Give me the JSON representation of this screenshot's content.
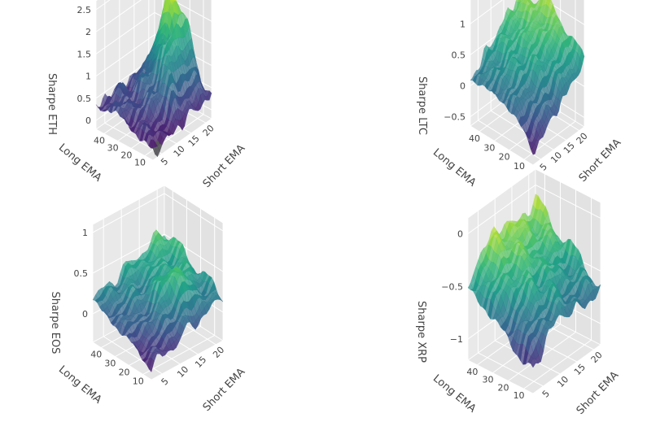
{
  "chart_data": [
    {
      "type": "surface",
      "zlabel": "Sharpe ETH",
      "xlabel": "Short EMA",
      "ylabel": "Long EMA",
      "z_ticks": [
        "0",
        "0.5",
        "1",
        "1.5",
        "2",
        "2.5"
      ],
      "z_range": [
        -0.2,
        2.7
      ],
      "x_ticks": [
        "5",
        "10",
        "15",
        "20"
      ],
      "x_range": [
        2,
        22
      ],
      "y_ticks": [
        "10",
        "20",
        "30",
        "40"
      ],
      "y_range": [
        4,
        46
      ],
      "surface_range": [
        -0.1,
        2.6
      ],
      "colorscale": "viridis",
      "sample_values": [
        {
          "short_ema": 20,
          "long_ema": 25,
          "sharpe": 2.55
        },
        {
          "short_ema": 15,
          "long_ema": 20,
          "sharpe": 1.9
        },
        {
          "short_ema": 10,
          "long_ema": 20,
          "sharpe": 1.6
        },
        {
          "short_ema": 5,
          "long_ema": 10,
          "sharpe": 0.1
        },
        {
          "short_ema": 20,
          "long_ema": 45,
          "sharpe": 0.4
        }
      ]
    },
    {
      "type": "surface",
      "zlabel": "Sharpe LTC",
      "xlabel": "Short EMA",
      "ylabel": "Long EMA",
      "z_ticks": [
        "−0.5",
        "0",
        "0.5",
        "1"
      ],
      "z_range": [
        -0.65,
        1.45
      ],
      "x_ticks": [
        "5",
        "10",
        "15",
        "20"
      ],
      "x_range": [
        2,
        22
      ],
      "y_ticks": [
        "10",
        "20",
        "30",
        "40"
      ],
      "y_range": [
        4,
        46
      ],
      "surface_range": [
        -0.6,
        1.3
      ],
      "colorscale": "viridis",
      "sample_values": [
        {
          "short_ema": 20,
          "long_ema": 30,
          "sharpe": 1.3
        },
        {
          "short_ema": 15,
          "long_ema": 25,
          "sharpe": 0.9
        },
        {
          "short_ema": 5,
          "long_ema": 10,
          "sharpe": -0.5
        },
        {
          "short_ema": 20,
          "long_ema": 45,
          "sharpe": 1.1
        }
      ]
    },
    {
      "type": "surface",
      "zlabel": "Sharpe EOS",
      "xlabel": "Short EMA",
      "ylabel": "Long EMA",
      "z_ticks": [
        "0",
        "0.5",
        "1"
      ],
      "z_range": [
        -0.35,
        1.1
      ],
      "x_ticks": [
        "5",
        "10",
        "15",
        "20"
      ],
      "x_range": [
        2,
        22
      ],
      "y_ticks": [
        "10",
        "20",
        "30",
        "40"
      ],
      "y_range": [
        4,
        46
      ],
      "surface_range": [
        -0.3,
        0.9
      ],
      "colorscale": "viridis",
      "sample_values": [
        {
          "short_ema": 15,
          "long_ema": 20,
          "sharpe": 0.85
        },
        {
          "short_ema": 5,
          "long_ema": 10,
          "sharpe": -0.25
        },
        {
          "short_ema": 20,
          "long_ema": 45,
          "sharpe": 0.45
        }
      ]
    },
    {
      "type": "surface",
      "zlabel": "Sharpe XRP",
      "xlabel": "Short EMA",
      "ylabel": "Long EMA",
      "z_ticks": [
        "−1",
        "−0.5",
        "0"
      ],
      "z_range": [
        -1.2,
        0.15
      ],
      "x_ticks": [
        "5",
        "10",
        "15",
        "20"
      ],
      "x_range": [
        2,
        22
      ],
      "y_ticks": [
        "10",
        "20",
        "30",
        "40"
      ],
      "y_range": [
        4,
        46
      ],
      "surface_range": [
        -1.1,
        0.0
      ],
      "colorscale": "viridis",
      "sample_values": [
        {
          "short_ema": 20,
          "long_ema": 35,
          "sharpe": 0.0
        },
        {
          "short_ema": 5,
          "long_ema": 10,
          "sharpe": -1.0
        },
        {
          "short_ema": 20,
          "long_ema": 45,
          "sharpe": -0.35
        }
      ]
    }
  ]
}
